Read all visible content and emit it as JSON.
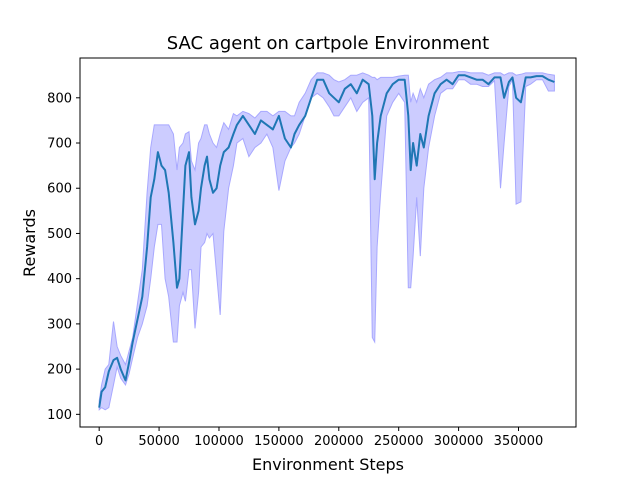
{
  "chart_data": {
    "type": "line",
    "title": "SAC agent on cartpole Environment",
    "xlabel": "Environment Steps",
    "ylabel": "Rewards",
    "xlim": [
      -16000,
      398000
    ],
    "ylim": [
      72,
      888
    ],
    "xticks": [
      0,
      50000,
      100000,
      150000,
      200000,
      250000,
      300000,
      350000
    ],
    "yticks": [
      100,
      200,
      300,
      400,
      500,
      600,
      700,
      800
    ],
    "grid": false,
    "legend": "none",
    "colors": {
      "line": "#1f77b4",
      "band_fill": "#ccccff",
      "band_edge": "#a8a8ff"
    },
    "series": [
      {
        "x": [
          0,
          2000,
          5000,
          8000,
          12000,
          15000,
          18000,
          22000,
          25000,
          28000,
          32000,
          36000,
          40000,
          43000,
          46000,
          49000,
          52000,
          55000,
          58000,
          62000,
          65000,
          67000,
          70000,
          72000,
          75000,
          77000,
          80000,
          83000,
          85000,
          88000,
          90000,
          92000,
          95000,
          98000,
          101000,
          104000,
          108000,
          112000,
          115000,
          120000,
          125000,
          130000,
          135000,
          140000,
          145000,
          150000,
          155000,
          160000,
          163000,
          167000,
          172000,
          177000,
          182000,
          187000,
          192000,
          196000,
          200000,
          205000,
          210000,
          215000,
          220000,
          225000,
          228000,
          230000,
          232000,
          235000,
          240000,
          245000,
          250000,
          255000,
          258000,
          260000,
          262000,
          265000,
          268000,
          271000,
          275000,
          280000,
          285000,
          290000,
          295000,
          300000,
          305000,
          310000,
          315000,
          320000,
          325000,
          330000,
          335000,
          338000,
          342000,
          345000,
          348000,
          352000,
          356000,
          360000,
          365000,
          370000,
          375000,
          380000
        ],
        "y": [
          115,
          150,
          160,
          195,
          220,
          225,
          200,
          175,
          215,
          260,
          310,
          360,
          470,
          580,
          620,
          680,
          650,
          640,
          590,
          480,
          380,
          400,
          550,
          650,
          680,
          580,
          520,
          550,
          600,
          650,
          670,
          620,
          590,
          600,
          650,
          680,
          690,
          720,
          740,
          760,
          740,
          720,
          750,
          740,
          730,
          760,
          710,
          690,
          720,
          740,
          760,
          800,
          840,
          840,
          810,
          800,
          790,
          820,
          830,
          810,
          840,
          830,
          760,
          620,
          700,
          760,
          810,
          830,
          840,
          840,
          760,
          640,
          700,
          650,
          720,
          690,
          760,
          810,
          830,
          840,
          830,
          850,
          850,
          845,
          840,
          840,
          830,
          845,
          845,
          800,
          835,
          845,
          800,
          790,
          845,
          845,
          848,
          848,
          840,
          835
        ],
        "upper": [
          130,
          165,
          200,
          210,
          305,
          250,
          230,
          210,
          240,
          270,
          345,
          420,
          590,
          690,
          740,
          740,
          740,
          740,
          740,
          720,
          640,
          690,
          700,
          720,
          725,
          660,
          640,
          700,
          710,
          740,
          740,
          720,
          700,
          690,
          720,
          745,
          730,
          765,
          760,
          770,
          765,
          755,
          770,
          770,
          760,
          770,
          770,
          760,
          760,
          790,
          810,
          840,
          855,
          855,
          850,
          840,
          835,
          840,
          850,
          850,
          855,
          850,
          845,
          845,
          840,
          845,
          845,
          845,
          848,
          850,
          850,
          790,
          810,
          790,
          820,
          800,
          830,
          840,
          845,
          855,
          855,
          858,
          858,
          855,
          855,
          855,
          850,
          855,
          855,
          850,
          855,
          855,
          850,
          852,
          855,
          855,
          855,
          855,
          852,
          850
        ],
        "lower": [
          110,
          115,
          110,
          115,
          165,
          205,
          180,
          165,
          190,
          225,
          270,
          300,
          340,
          400,
          470,
          520,
          520,
          400,
          360,
          260,
          260,
          340,
          370,
          350,
          420,
          420,
          290,
          370,
          470,
          480,
          500,
          490,
          500,
          410,
          320,
          505,
          600,
          650,
          700,
          710,
          670,
          690,
          700,
          720,
          690,
          595,
          660,
          690,
          700,
          720,
          760,
          800,
          810,
          800,
          780,
          760,
          760,
          780,
          800,
          770,
          790,
          800,
          270,
          260,
          470,
          590,
          760,
          790,
          810,
          790,
          380,
          380,
          450,
          580,
          450,
          600,
          690,
          760,
          810,
          820,
          820,
          840,
          840,
          830,
          830,
          825,
          825,
          838,
          600,
          700,
          825,
          840,
          565,
          570,
          825,
          830,
          840,
          840,
          815,
          815
        ]
      }
    ]
  }
}
